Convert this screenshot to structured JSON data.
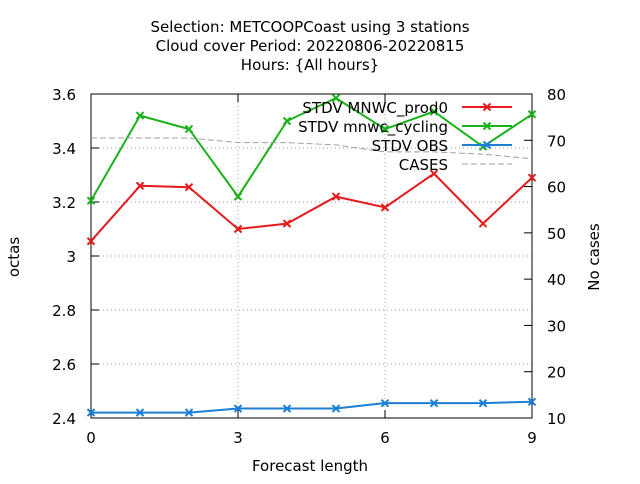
{
  "chart_data": {
    "type": "line",
    "title_lines": [
      "Selection: METCOOPCoast using     3 stations",
      "Cloud cover   Period: 20220806-20220815",
      "Hours: {All hours}"
    ],
    "xlabel": "Forecast length",
    "ylabel": "octas",
    "y2label": "No cases",
    "xlim": [
      0,
      9
    ],
    "ylim": [
      2.4,
      3.6
    ],
    "y2lim": [
      10,
      80
    ],
    "x_ticks": [
      "0",
      "3",
      "6",
      "9"
    ],
    "y_ticks": [
      "2.4",
      "2.6",
      "2.8",
      "3",
      "3.2",
      "3.4",
      "3.6"
    ],
    "y2_ticks": [
      "10",
      "20",
      "30",
      "40",
      "50",
      "60",
      "70",
      "80"
    ],
    "grid": true,
    "legend_position": "top-right",
    "x": [
      0,
      1,
      2,
      3,
      4,
      5,
      6,
      7,
      8,
      9
    ],
    "series": [
      {
        "name": "STDV MNWC_prod0",
        "axis": "y",
        "color": "#e41a1c",
        "marker": "x",
        "values": [
          3.055,
          3.26,
          3.255,
          3.1,
          3.12,
          3.22,
          3.18,
          3.305,
          3.12,
          3.29
        ]
      },
      {
        "name": "STDV mnwc_cycling",
        "axis": "y",
        "color": "#1ab21a",
        "marker": "x",
        "values": [
          3.205,
          3.52,
          3.47,
          3.22,
          3.5,
          3.585,
          3.47,
          3.535,
          3.405,
          3.525
        ]
      },
      {
        "name": "STDV OBS",
        "axis": "y",
        "color": "#1c7fd4",
        "marker": "x",
        "values": [
          2.42,
          2.42,
          2.42,
          2.435,
          2.435,
          2.435,
          2.455,
          2.455,
          2.455,
          2.46
        ]
      },
      {
        "name": "CASES",
        "axis": "y2",
        "color": "#a0a0a0",
        "dashed": true,
        "values": [
          70.5,
          70.5,
          70.5,
          69.5,
          69.5,
          69.0,
          67.5,
          67.5,
          67.0,
          66.0
        ]
      }
    ]
  }
}
